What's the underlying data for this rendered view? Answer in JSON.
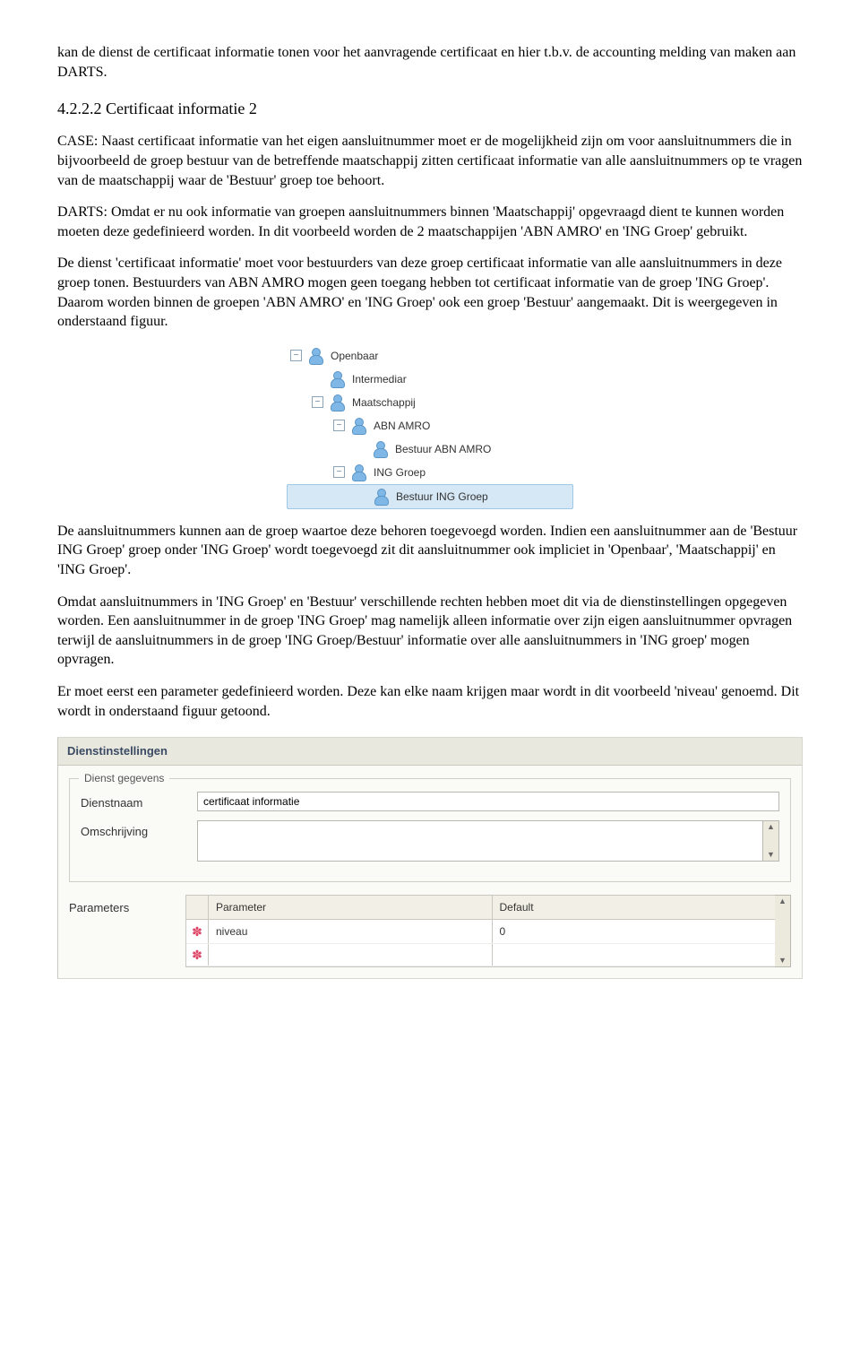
{
  "para_intro": "kan de dienst de certificaat informatie tonen voor het aanvragende certificaat en hier t.b.v. de accounting melding van maken aan DARTS.",
  "heading": "4.2.2.2 Certificaat informatie 2",
  "para_case": "CASE: Naast certificaat informatie van het eigen aansluitnummer moet er de mogelijkheid zijn om voor aansluitnummers die in bijvoorbeeld de groep bestuur van de betreffende maatschappij zitten certificaat informatie van alle aansluitnummers op te vragen van de maatschappij waar de 'Bestuur' groep toe behoort.",
  "para_darts": "DARTS: Omdat er nu ook informatie van groepen aansluitnummers binnen 'Maatschappij' opgevraagd dient te kunnen worden moeten deze gedefinieerd worden. In dit voorbeeld worden de 2 maatschappijen 'ABN AMRO' en 'ING Groep' gebruikt.",
  "para_dienst": "De dienst 'certificaat informatie' moet voor bestuurders van deze groep certificaat informatie van alle aansluitnummers in deze groep tonen. Bestuurders van ABN AMRO mogen geen toegang hebben tot certificaat informatie van de groep 'ING Groep'. Daarom worden binnen de groepen 'ABN AMRO' en 'ING Groep' ook een groep 'Bestuur' aangemaakt. Dit is weergegeven in onderstaand figuur.",
  "tree": {
    "items": [
      {
        "label": "Openbaar",
        "indent": 0,
        "expander": "−",
        "selected": false
      },
      {
        "label": "Intermediar",
        "indent": 24,
        "expander": "",
        "selected": false
      },
      {
        "label": "Maatschappij",
        "indent": 24,
        "expander": "−",
        "selected": false
      },
      {
        "label": "ABN AMRO",
        "indent": 48,
        "expander": "−",
        "selected": false
      },
      {
        "label": "Bestuur ABN AMRO",
        "indent": 72,
        "expander": "",
        "selected": false
      },
      {
        "label": "ING Groep",
        "indent": 48,
        "expander": "−",
        "selected": false
      },
      {
        "label": "Bestuur ING Groep",
        "indent": 72,
        "expander": "",
        "selected": true
      }
    ]
  },
  "para_after_tree_1": "De aansluitnummers kunnen aan de groep waartoe deze behoren toegevoegd worden. Indien een aansluitnummer aan de 'Bestuur ING Groep' groep onder 'ING Groep' wordt toegevoegd zit dit aansluitnummer ook impliciet in 'Openbaar', 'Maatschappij' en 'ING Groep'.",
  "para_after_tree_2": "Omdat aansluitnummers in 'ING Groep' en 'Bestuur' verschillende rechten hebben moet dit via de dienstinstellingen opgegeven worden. Een aansluitnummer in de groep 'ING Groep' mag namelijk alleen informatie over zijn eigen aansluitnummer opvragen terwijl de aansluitnummers in de groep 'ING Groep/Bestuur'  informatie over alle aansluitnummers in 'ING groep' mogen opvragen.",
  "para_after_tree_3": "Er moet eerst een parameter gedefinieerd worden. Deze kan elke naam krijgen maar wordt in dit voorbeeld 'niveau' genoemd. Dit wordt in onderstaand figuur getoond.",
  "form": {
    "header": "Dienstinstellingen",
    "legend": "Dienst gegevens",
    "dienstnaam_label": "Dienstnaam",
    "dienstnaam_value": "certificaat informatie",
    "omschrijving_label": "Omschrijving",
    "omschrijving_value": "",
    "parameters_label": "Parameters",
    "param_header_name": "Parameter",
    "param_header_default": "Default",
    "param_rows": [
      {
        "name": "niveau",
        "default": "0"
      },
      {
        "name": "",
        "default": ""
      }
    ]
  }
}
